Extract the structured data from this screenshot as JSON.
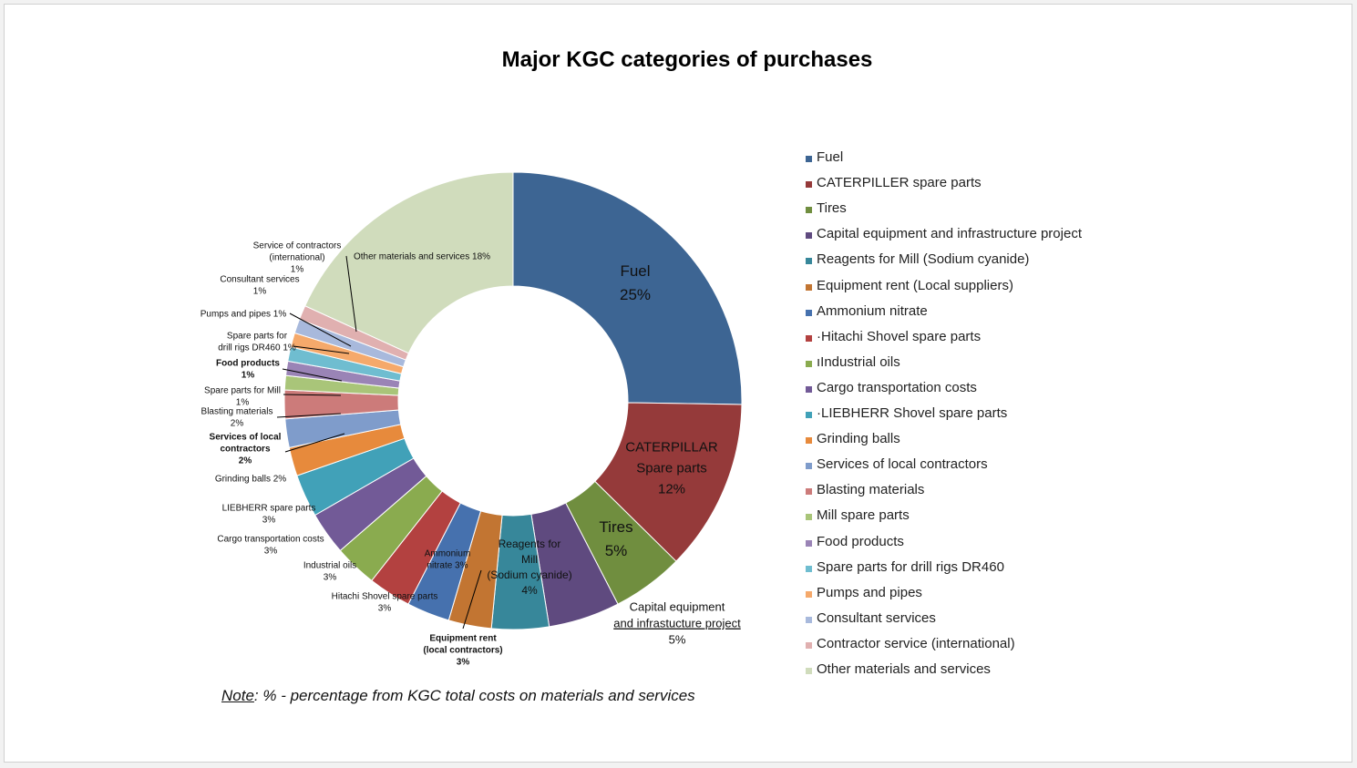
{
  "chart_data": {
    "type": "pie",
    "title": "Major KGC categories of purchases",
    "note_prefix": "Note",
    "note_text": ": % - percentage from KGC total costs on materials and services",
    "slices": [
      {
        "legend": "Fuel",
        "value": 25,
        "color": "#3d6593",
        "label_lines": [
          "Fuel",
          "25%"
        ]
      },
      {
        "legend": "CATERPILLER spare parts",
        "value": 12,
        "color": "#953a3a",
        "label_lines": [
          "CATERPILLAR",
          "Spare parts",
          "12%"
        ]
      },
      {
        "legend": "Tires",
        "value": 5,
        "color": "#708e3f",
        "label_lines": [
          "Tires",
          "5%"
        ]
      },
      {
        "legend": "Capital equipment and infrastructure project",
        "value": 5,
        "color": "#5f4a7f",
        "label_lines": [
          "Capital equipment",
          "and infrastucture project",
          "5%"
        ]
      },
      {
        "legend": " Reagents for Mill (Sodium cyanide)",
        "value": 4,
        "color": "#37879a",
        "label_lines": [
          "Reagents for",
          "Mill",
          "(Sodium cyanide)",
          "4%"
        ]
      },
      {
        "legend": "Equipment rent (Local suppliers)",
        "value": 3,
        "color": "#c27532",
        "label_lines": [
          "Equipment rent",
          "(local contractors)",
          "3%"
        ]
      },
      {
        "legend": "Ammonium nitrate",
        "value": 3,
        "color": "#4671ae",
        "label_lines": [
          "Ammonium",
          "nitrate 3%"
        ]
      },
      {
        "legend": "·Hitachi Shovel spare parts",
        "value": 3,
        "color": "#b34140",
        "label_lines": [
          "Hitachi Shovel spare parts",
          "3%"
        ]
      },
      {
        "legend": "ıIndustrial oils",
        "value": 3,
        "color": "#8aab4f",
        "label_lines": [
          "Industrial oils",
          "3%"
        ]
      },
      {
        "legend": "Cargo transportation costs",
        "value": 3,
        "color": "#725a97",
        "label_lines": [
          "Cargo transportation costs",
          "3%"
        ]
      },
      {
        "legend": "·LIEBHERR Shovel spare parts",
        "value": 3,
        "color": "#41a1b8",
        "label_lines": [
          "LIEBHERR spare parts",
          "3%"
        ]
      },
      {
        "legend": "Grinding balls",
        "value": 2,
        "color": "#e78a3c",
        "label_lines": [
          "Grinding balls 2%"
        ]
      },
      {
        "legend": "Services of local contractors",
        "value": 2,
        "color": "#7f9ccb",
        "label_lines": [
          "Services of local",
          "contractors",
          "2%"
        ]
      },
      {
        "legend": "Blasting materials",
        "value": 2,
        "color": "#cc7b7a",
        "label_lines": [
          "Blasting materials",
          "2%"
        ]
      },
      {
        "legend": "Mill spare parts",
        "value": 1,
        "color": "#a9c579",
        "label_lines": [
          "Spare parts for Mill",
          "1%"
        ]
      },
      {
        "legend": "Food products",
        "value": 1,
        "color": "#9a84b6",
        "label_lines": [
          "Food products",
          "1%"
        ]
      },
      {
        "legend": "Spare parts for drill rigs DR460",
        "value": 1,
        "color": "#6fbdd0",
        "label_lines": [
          "Spare parts for",
          "drill rigs DR460 1%"
        ]
      },
      {
        "legend": " Pumps and pipes",
        "value": 1,
        "color": "#f5a96b",
        "label_lines": [
          "Pumps and pipes 1%"
        ]
      },
      {
        "legend": "Consultant services",
        "value": 1,
        "color": "#a8b9dc",
        "label_lines": [
          "Consultant services",
          "1%"
        ]
      },
      {
        "legend": " Contractor service (international)",
        "value": 1,
        "color": "#e0b0b0",
        "label_lines": [
          "Service of contractors",
          "(international)",
          "1%"
        ]
      },
      {
        "legend": "Other materials and services",
        "value": 18,
        "color": "#d0dcbc",
        "label_lines": [
          "Other materials and services 18%"
        ]
      }
    ]
  }
}
